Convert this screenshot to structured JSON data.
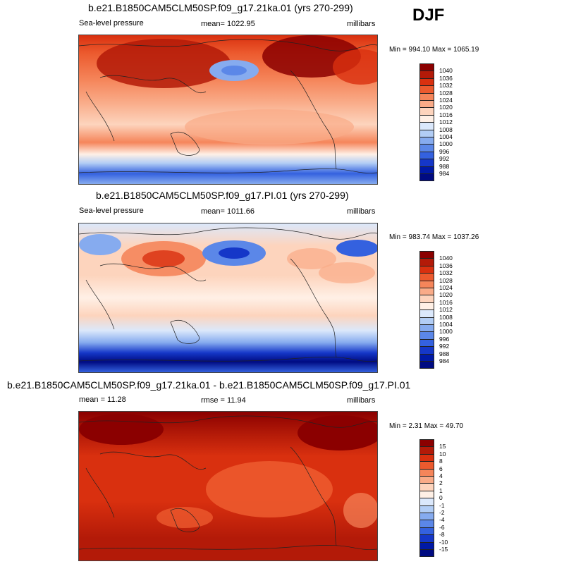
{
  "season": "DJF",
  "panels": [
    {
      "title": "b.e21.B1850CAM5CLM50SP.f09_g17.21ka.01 (yrs 270-299)",
      "left_label": "Sea-level pressure",
      "center_label": "mean= 1022.95",
      "right_label": "millibars",
      "minmax": "Min = 994.10 Max = 1065.19",
      "colorbar": {
        "labels": [
          "1040",
          "1036",
          "1032",
          "1028",
          "1024",
          "1020",
          "1016",
          "1012",
          "1008",
          "1004",
          "1000",
          "996",
          "992",
          "988",
          "984"
        ],
        "colors": [
          "#8b0000",
          "#b31a08",
          "#d9300f",
          "#ec5a2e",
          "#f5855a",
          "#f9ab88",
          "#fdd4bd",
          "#fff0e6",
          "#dbe8fb",
          "#b2cdf5",
          "#86abef",
          "#5b87e8",
          "#3461df",
          "#1537c8",
          "#0019a6",
          "#000b82"
        ]
      },
      "field_description": "sea-level pressure field"
    },
    {
      "title": "b.e21.B1850CAM5CLM50SP.f09_g17.PI.01 (yrs 270-299)",
      "left_label": "Sea-level pressure",
      "center_label": "mean= 1011.66",
      "right_label": "millibars",
      "minmax": "Min = 983.74 Max = 1037.26",
      "colorbar": {
        "labels": [
          "1040",
          "1036",
          "1032",
          "1028",
          "1024",
          "1020",
          "1016",
          "1012",
          "1008",
          "1004",
          "1000",
          "996",
          "992",
          "988",
          "984"
        ],
        "colors": [
          "#8b0000",
          "#b31a08",
          "#d9300f",
          "#ec5a2e",
          "#f5855a",
          "#f9ab88",
          "#fdd4bd",
          "#fff0e6",
          "#dbe8fb",
          "#b2cdf5",
          "#86abef",
          "#5b87e8",
          "#3461df",
          "#1537c8",
          "#0019a6",
          "#000b82"
        ]
      }
    },
    {
      "title": "b.e21.B1850CAM5CLM50SP.f09_g17.21ka.01 - b.e21.B1850CAM5CLM50SP.f09_g17.PI.01",
      "left_label": "mean =  11.28",
      "center_label": "rmse =  11.94",
      "right_label": "millibars",
      "minmax": "Min =   2.31 Max = 49.70",
      "colorbar": {
        "labels": [
          "15",
          "10",
          "8",
          "6",
          "4",
          "2",
          "1",
          "0",
          "-1",
          "-2",
          "-4",
          "-6",
          "-8",
          "-10",
          "-15"
        ],
        "colors": [
          "#8b0000",
          "#b31a08",
          "#d9300f",
          "#ec5a2e",
          "#f5855a",
          "#f9ab88",
          "#fdd4bd",
          "#fff0e6",
          "#dbe8fb",
          "#b2cdf5",
          "#86abef",
          "#5b87e8",
          "#3461df",
          "#1537c8",
          "#0019a6",
          "#000b82"
        ]
      }
    }
  ]
}
